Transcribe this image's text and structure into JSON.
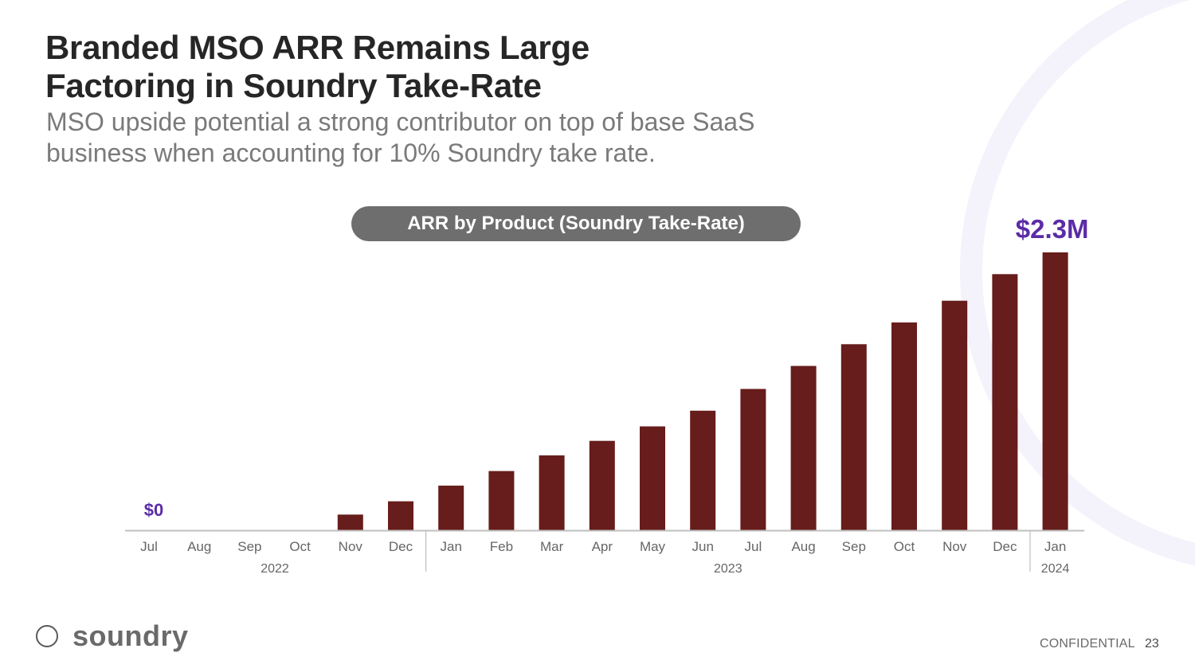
{
  "slide": {
    "title_line1": "Branded MSO ARR Remains Large",
    "title_line2": "Factoring in Soundry Take-Rate",
    "subtitle_line1": "MSO upside potential a strong contributor on top of base SaaS",
    "subtitle_line2": "business when accounting for 10% Soundry take rate.",
    "brand": "soundry",
    "confidential": "CONFIDENTIAL",
    "page_number": "23"
  },
  "colors": {
    "bar": "#661d1b",
    "annotation": "#5b2ca6",
    "axis": "#bfbfbf",
    "tick_text": "#666666"
  },
  "icons": {
    "logo": "ring-icon"
  },
  "chart_data": {
    "type": "bar",
    "title": "ARR by Product (Soundry Take-Rate)",
    "categories": [
      "Jul",
      "Aug",
      "Sep",
      "Oct",
      "Nov",
      "Dec",
      "Jan",
      "Feb",
      "Mar",
      "Apr",
      "May",
      "Jun",
      "Jul",
      "Aug",
      "Sep",
      "Oct",
      "Nov",
      "Dec",
      "Jan"
    ],
    "year_groups": [
      {
        "label": "2022",
        "start": 0,
        "end": 5
      },
      {
        "label": "2023",
        "start": 6,
        "end": 17
      },
      {
        "label": "2024",
        "start": 18,
        "end": 18
      }
    ],
    "values": [
      0,
      0,
      0,
      0,
      0.13,
      0.24,
      0.37,
      0.49,
      0.62,
      0.74,
      0.86,
      0.99,
      1.17,
      1.36,
      1.54,
      1.72,
      1.9,
      2.12,
      2.3
    ],
    "units": "$M",
    "ylim": [
      0,
      2.3
    ],
    "xlabel": "",
    "ylabel": "",
    "grid": false,
    "annotations": [
      {
        "index": 0,
        "text": "$0"
      },
      {
        "index": 18,
        "text": "$2.3M"
      }
    ]
  }
}
